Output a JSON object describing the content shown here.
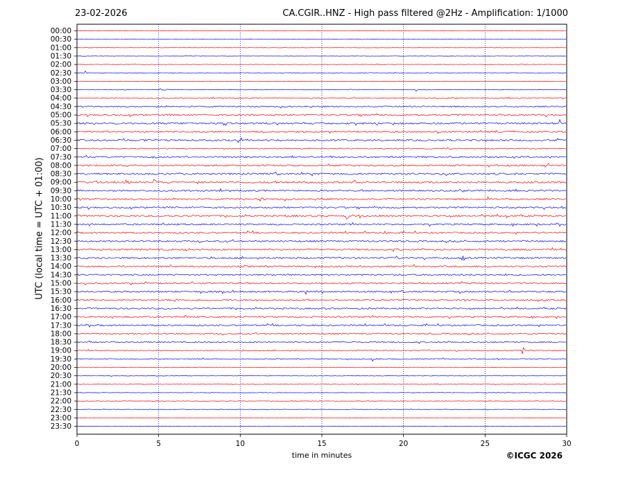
{
  "header": {
    "date": "23-02-2026",
    "title": "CA.CGIR..HNZ - High pass filtered @2Hz - Amplification: 1/1000"
  },
  "footer": {
    "copyright": "©ICGC 2026"
  },
  "chart_data": {
    "type": "line",
    "title": "CA.CGIR..HNZ - High pass filtered @2Hz - Amplification: 1/1000",
    "xlabel": "time in minutes",
    "ylabel": "UTC (local time = UTC + 01:00)",
    "xlim": [
      0,
      30
    ],
    "xticks": [
      0,
      5,
      10,
      15,
      20,
      25,
      30
    ],
    "grid": "vertical dotted at 5-minute ticks",
    "colors": {
      "red": "#ff0000",
      "blue": "#0000ff"
    },
    "rows": [
      "00:00",
      "00:30",
      "01:00",
      "01:30",
      "02:00",
      "02:30",
      "03:00",
      "03:30",
      "04:00",
      "04:30",
      "05:00",
      "05:30",
      "06:00",
      "06:30",
      "07:00",
      "07:30",
      "08:00",
      "08:30",
      "09:00",
      "09:30",
      "10:00",
      "10:30",
      "11:00",
      "11:30",
      "12:00",
      "12:30",
      "13:00",
      "13:30",
      "14:00",
      "14:30",
      "15:00",
      "15:30",
      "16:00",
      "16:30",
      "17:00",
      "17:30",
      "18:00",
      "18:30",
      "19:00",
      "19:30",
      "20:00",
      "20:30",
      "21:00",
      "21:30",
      "22:00",
      "22:30",
      "23:00",
      "23:30"
    ],
    "row_colors": [
      "red",
      "blue",
      "red",
      "blue",
      "red",
      "blue",
      "red",
      "blue",
      "red",
      "blue",
      "red",
      "blue",
      "red",
      "blue",
      "red",
      "blue",
      "red",
      "blue",
      "red",
      "blue",
      "red",
      "blue",
      "red",
      "blue",
      "red",
      "blue",
      "red",
      "blue",
      "red",
      "blue",
      "red",
      "blue",
      "red",
      "blue",
      "red",
      "blue",
      "red",
      "blue",
      "red",
      "blue",
      "red",
      "blue",
      "red",
      "blue",
      "red",
      "blue",
      "red",
      "blue"
    ],
    "noise_level": [
      0.3,
      0.3,
      0.3,
      0.3,
      0.4,
      0.5,
      0.3,
      0.5,
      1.0,
      1.3,
      1.6,
      1.8,
      1.6,
      1.7,
      1.0,
      1.6,
      1.6,
      1.8,
      1.8,
      1.6,
      1.6,
      1.6,
      1.7,
      1.6,
      1.6,
      1.6,
      1.6,
      1.7,
      1.5,
      1.5,
      1.5,
      1.6,
      1.5,
      1.5,
      1.5,
      1.5,
      1.3,
      1.2,
      1.0,
      0.9,
      0.6,
      0.5,
      0.5,
      0.5,
      0.5,
      0.5,
      0.3,
      0.3
    ],
    "events": [
      {
        "row": "02:00",
        "minute": 27.0,
        "amp": 3
      },
      {
        "row": "02:30",
        "minute": 0.5,
        "amp": 3
      },
      {
        "row": "03:30",
        "minute": 5.1,
        "amp": 3
      },
      {
        "row": "03:30",
        "minute": 5.4,
        "amp": 3
      },
      {
        "row": "03:30",
        "minute": 20.8,
        "amp": 2
      },
      {
        "row": "05:30",
        "minute": 29.6,
        "amp": 8
      },
      {
        "row": "06:00",
        "minute": 1.7,
        "amp": 6
      },
      {
        "row": "06:00",
        "minute": 11.4,
        "amp": 3
      },
      {
        "row": "06:00",
        "minute": 15.5,
        "amp": 4
      },
      {
        "row": "06:00",
        "minute": 22.1,
        "amp": 3
      },
      {
        "row": "06:30",
        "minute": 4.1,
        "amp": 4
      },
      {
        "row": "06:30",
        "minute": 4.7,
        "amp": 4
      },
      {
        "row": "06:30",
        "minute": 9.9,
        "amp": 3
      },
      {
        "row": "07:00",
        "minute": 22.7,
        "amp": 3
      },
      {
        "row": "08:30",
        "minute": 12.2,
        "amp": 3
      },
      {
        "row": "08:30",
        "minute": 21.5,
        "amp": 3
      },
      {
        "row": "09:00",
        "minute": 1.0,
        "amp": 6
      },
      {
        "row": "09:00",
        "minute": 3.0,
        "amp": 5
      },
      {
        "row": "09:00",
        "minute": 4.7,
        "amp": 6
      },
      {
        "row": "09:00",
        "minute": 12.2,
        "amp": 5
      },
      {
        "row": "10:00",
        "minute": 11.2,
        "amp": 7
      },
      {
        "row": "10:00",
        "minute": 25.2,
        "amp": 4
      },
      {
        "row": "10:30",
        "minute": 6.1,
        "amp": 3
      },
      {
        "row": "10:30",
        "minute": 29.7,
        "amp": 4
      },
      {
        "row": "11:00",
        "minute": 12.6,
        "amp": 5
      },
      {
        "row": "11:00",
        "minute": 16.5,
        "amp": 5
      },
      {
        "row": "11:00",
        "minute": 17.3,
        "amp": 6
      },
      {
        "row": "11:00",
        "minute": 26.3,
        "amp": 4
      },
      {
        "row": "12:00",
        "minute": 18.8,
        "amp": 4
      },
      {
        "row": "12:30",
        "minute": 25.8,
        "amp": 3
      },
      {
        "row": "13:00",
        "minute": 6.7,
        "amp": 3
      },
      {
        "row": "13:00",
        "minute": 29.6,
        "amp": 3
      },
      {
        "row": "13:30",
        "minute": 23.6,
        "amp": 8
      },
      {
        "row": "13:30",
        "minute": 1.3,
        "amp": 3
      },
      {
        "row": "14:30",
        "minute": 9.6,
        "amp": 3
      },
      {
        "row": "15:00",
        "minute": 4.2,
        "amp": 3
      },
      {
        "row": "15:00",
        "minute": 7.0,
        "amp": 3
      },
      {
        "row": "15:30",
        "minute": 14.0,
        "amp": 4
      },
      {
        "row": "17:00",
        "minute": 6.6,
        "amp": 3
      },
      {
        "row": "18:30",
        "minute": 0.7,
        "amp": 3
      },
      {
        "row": "19:00",
        "minute": 27.3,
        "amp": 6
      },
      {
        "row": "19:30",
        "minute": 25.7,
        "amp": 4
      },
      {
        "row": "19:30",
        "minute": 27.2,
        "amp": 3
      },
      {
        "row": "19:30",
        "minute": 18.1,
        "amp": 3
      }
    ]
  }
}
